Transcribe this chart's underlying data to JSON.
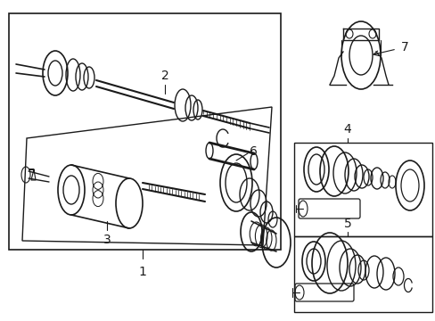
{
  "bg_color": "#ffffff",
  "line_color": "#1a1a1a",
  "fig_width": 4.89,
  "fig_height": 3.6,
  "dpi": 100,
  "lw": 1.0
}
